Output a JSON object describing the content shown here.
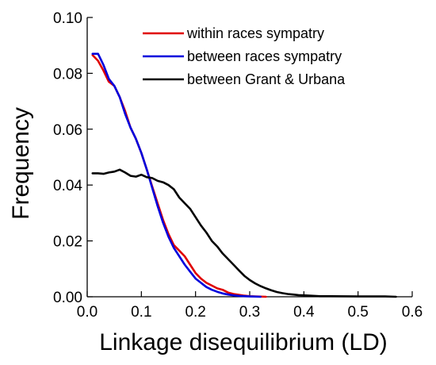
{
  "chart_data": {
    "type": "line",
    "title": "",
    "xlabel": "Linkage disequilibrium (LD)",
    "ylabel": "Frequency",
    "xlim": [
      0,
      0.6
    ],
    "ylim": [
      0,
      0.1
    ],
    "xticks": [
      "0.0",
      "0.1",
      "0.2",
      "0.3",
      "0.4",
      "0.5",
      "0.6"
    ],
    "yticks": [
      "0.00",
      "0.02",
      "0.04",
      "0.06",
      "0.08",
      "0.10"
    ],
    "grid": false,
    "legend_position": "top-right",
    "series": [
      {
        "name": "within races sympatry",
        "color": "#e00000",
        "points": [
          [
            0.01,
            0.0865
          ],
          [
            0.02,
            0.0845
          ],
          [
            0.03,
            0.081
          ],
          [
            0.04,
            0.077
          ],
          [
            0.05,
            0.0755
          ],
          [
            0.06,
            0.0715
          ],
          [
            0.07,
            0.0665
          ],
          [
            0.08,
            0.0605
          ],
          [
            0.09,
            0.0565
          ],
          [
            0.1,
            0.0515
          ],
          [
            0.11,
            0.0455
          ],
          [
            0.12,
            0.0395
          ],
          [
            0.13,
            0.0335
          ],
          [
            0.14,
            0.0275
          ],
          [
            0.15,
            0.0225
          ],
          [
            0.16,
            0.0185
          ],
          [
            0.17,
            0.0165
          ],
          [
            0.18,
            0.0145
          ],
          [
            0.19,
            0.0115
          ],
          [
            0.2,
            0.0085
          ],
          [
            0.21,
            0.0065
          ],
          [
            0.22,
            0.005
          ],
          [
            0.23,
            0.004
          ],
          [
            0.24,
            0.003
          ],
          [
            0.25,
            0.0025
          ],
          [
            0.26,
            0.0015
          ],
          [
            0.27,
            0.001
          ],
          [
            0.28,
            0.0007
          ],
          [
            0.29,
            0.0004
          ],
          [
            0.3,
            0.0002
          ],
          [
            0.31,
            0.0001
          ],
          [
            0.33,
            0.0
          ]
        ]
      },
      {
        "name": "between races sympatry",
        "color": "#0000dd",
        "points": [
          [
            0.01,
            0.087
          ],
          [
            0.02,
            0.087
          ],
          [
            0.03,
            0.083
          ],
          [
            0.04,
            0.078
          ],
          [
            0.05,
            0.0755
          ],
          [
            0.06,
            0.0715
          ],
          [
            0.07,
            0.0655
          ],
          [
            0.08,
            0.0605
          ],
          [
            0.09,
            0.0565
          ],
          [
            0.1,
            0.0515
          ],
          [
            0.11,
            0.0455
          ],
          [
            0.12,
            0.039
          ],
          [
            0.13,
            0.0325
          ],
          [
            0.14,
            0.0265
          ],
          [
            0.15,
            0.0215
          ],
          [
            0.16,
            0.0175
          ],
          [
            0.17,
            0.0145
          ],
          [
            0.18,
            0.0115
          ],
          [
            0.19,
            0.009
          ],
          [
            0.2,
            0.0065
          ],
          [
            0.21,
            0.005
          ],
          [
            0.22,
            0.0035
          ],
          [
            0.23,
            0.0025
          ],
          [
            0.24,
            0.0018
          ],
          [
            0.25,
            0.0012
          ],
          [
            0.26,
            0.0008
          ],
          [
            0.27,
            0.0005
          ],
          [
            0.28,
            0.0003
          ],
          [
            0.3,
            0.0001
          ],
          [
            0.32,
            0.0
          ]
        ]
      },
      {
        "name": "between Grant & Urbana",
        "color": "#000000",
        "points": [
          [
            0.01,
            0.0442
          ],
          [
            0.02,
            0.0442
          ],
          [
            0.03,
            0.044
          ],
          [
            0.04,
            0.0445
          ],
          [
            0.05,
            0.0448
          ],
          [
            0.06,
            0.0455
          ],
          [
            0.07,
            0.0445
          ],
          [
            0.08,
            0.0433
          ],
          [
            0.09,
            0.043
          ],
          [
            0.1,
            0.0437
          ],
          [
            0.11,
            0.0428
          ],
          [
            0.12,
            0.0425
          ],
          [
            0.13,
            0.0415
          ],
          [
            0.14,
            0.041
          ],
          [
            0.15,
            0.04
          ],
          [
            0.16,
            0.0385
          ],
          [
            0.17,
            0.0355
          ],
          [
            0.18,
            0.0335
          ],
          [
            0.19,
            0.0315
          ],
          [
            0.2,
            0.0285
          ],
          [
            0.21,
            0.0255
          ],
          [
            0.22,
            0.023
          ],
          [
            0.23,
            0.02
          ],
          [
            0.24,
            0.018
          ],
          [
            0.25,
            0.0155
          ],
          [
            0.26,
            0.0135
          ],
          [
            0.27,
            0.0115
          ],
          [
            0.28,
            0.0095
          ],
          [
            0.29,
            0.0075
          ],
          [
            0.3,
            0.006
          ],
          [
            0.31,
            0.0048
          ],
          [
            0.32,
            0.0038
          ],
          [
            0.33,
            0.003
          ],
          [
            0.34,
            0.0023
          ],
          [
            0.35,
            0.0017
          ],
          [
            0.36,
            0.0013
          ],
          [
            0.37,
            0.001
          ],
          [
            0.38,
            0.0008
          ],
          [
            0.39,
            0.0006
          ],
          [
            0.4,
            0.0005
          ],
          [
            0.41,
            0.0004
          ],
          [
            0.42,
            0.0003
          ],
          [
            0.43,
            0.0002
          ],
          [
            0.45,
            0.0002
          ],
          [
            0.5,
            0.0001
          ],
          [
            0.55,
            0.0001
          ],
          [
            0.57,
            0.0
          ]
        ]
      }
    ]
  }
}
